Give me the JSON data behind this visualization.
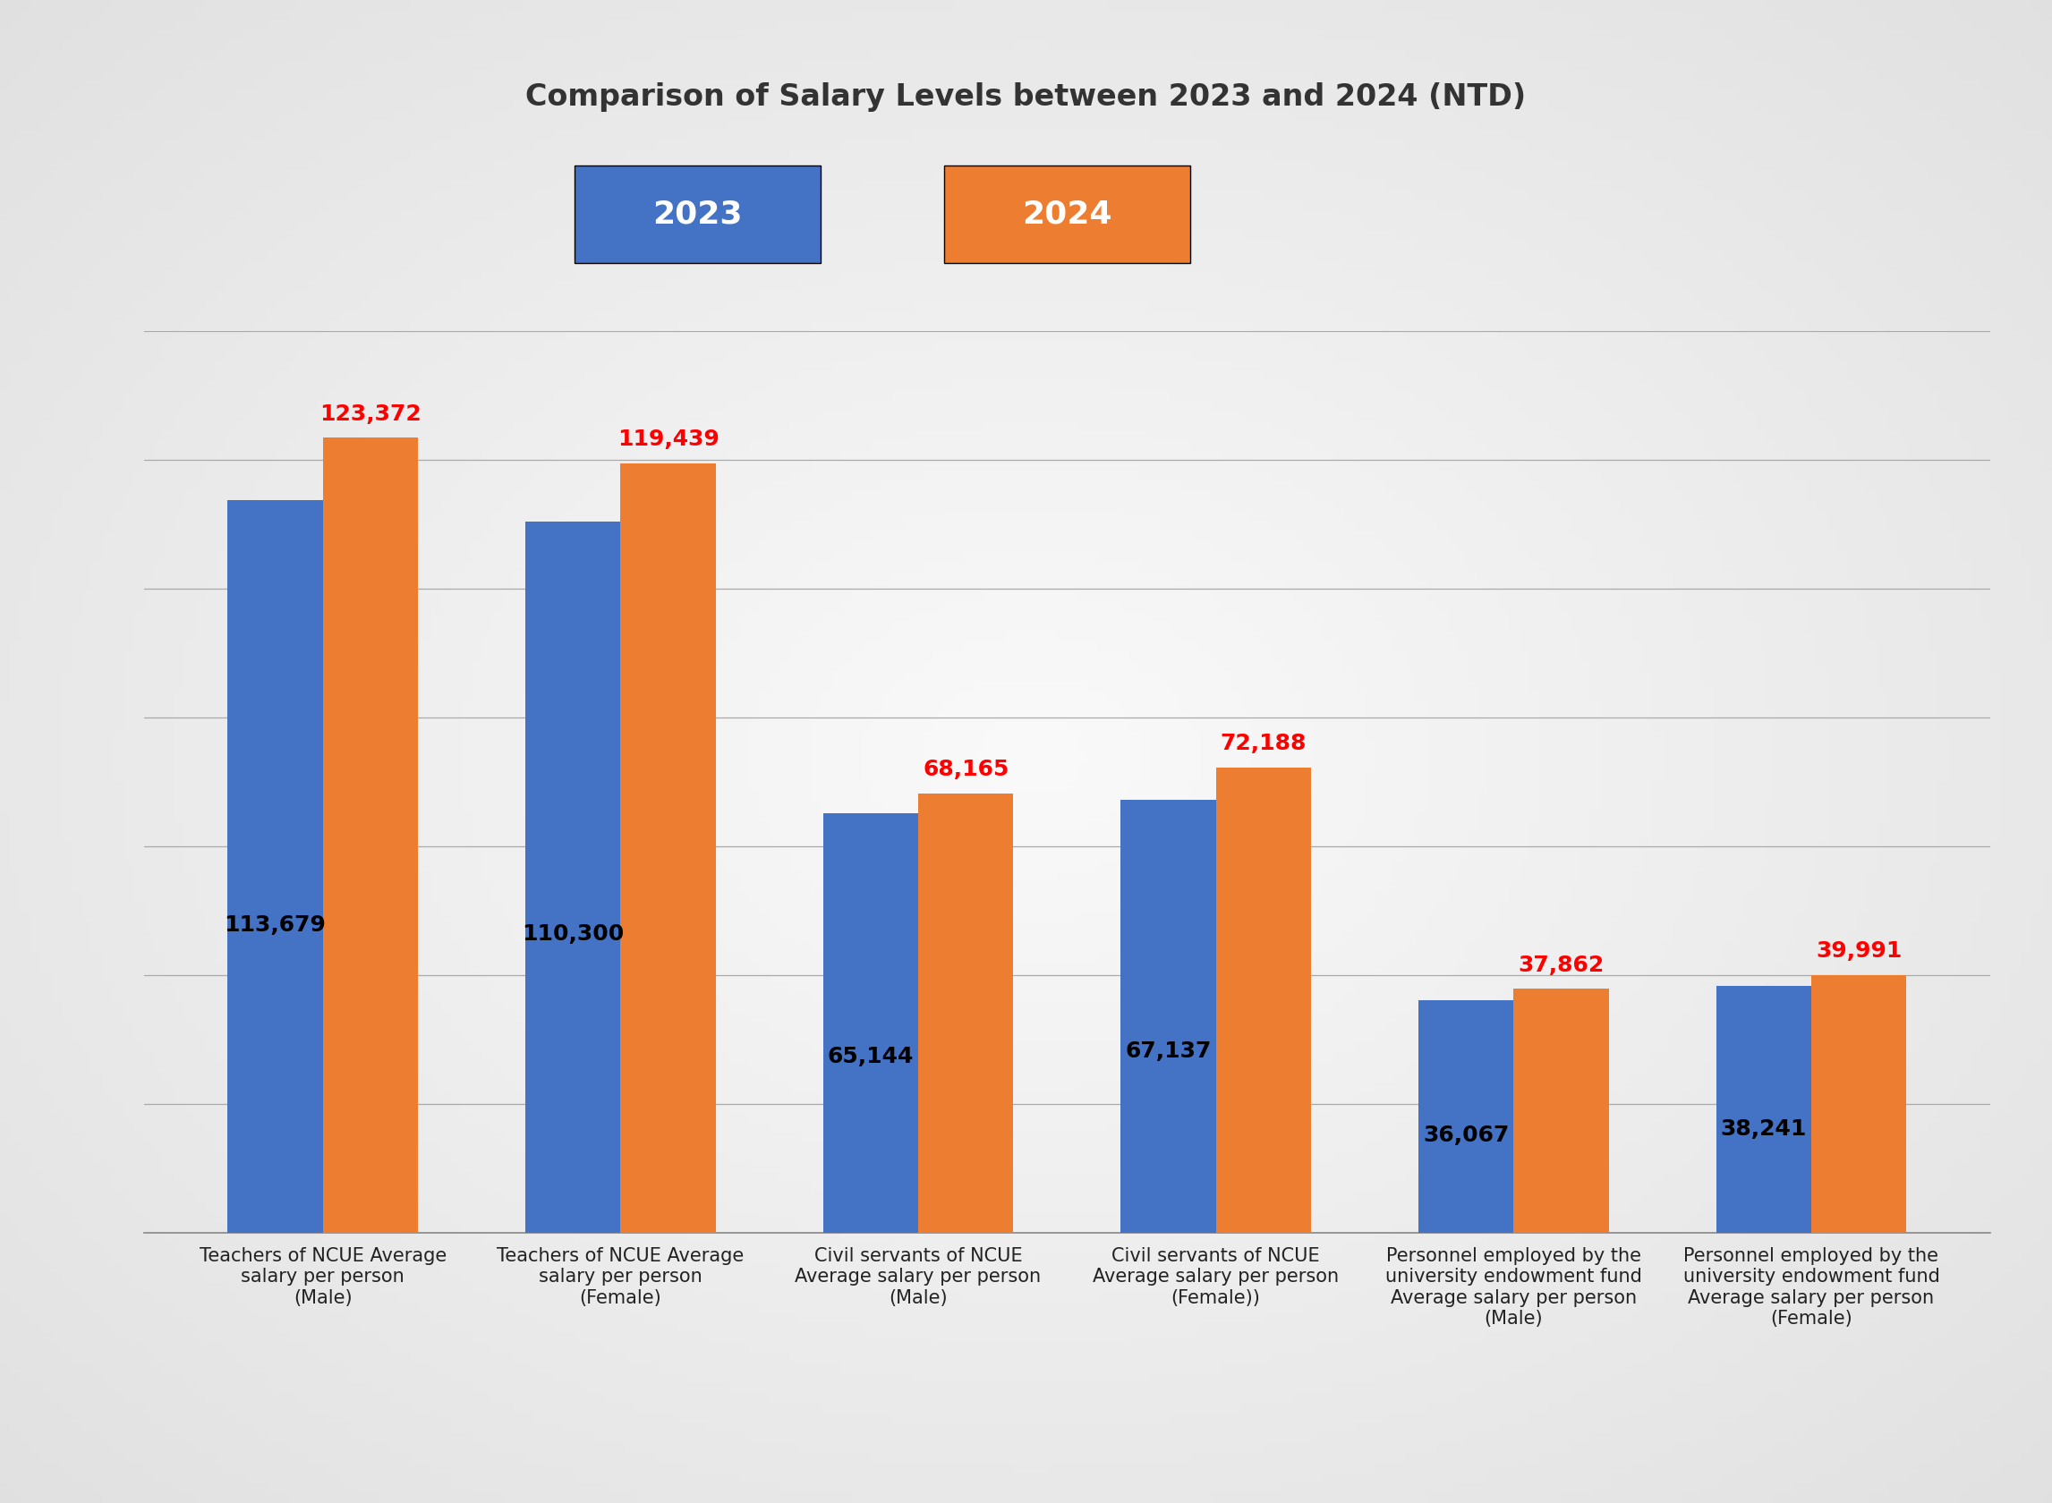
{
  "title": "Comparison of Salary Levels between 2023 and 2024 (NTD)",
  "categories": [
    "Teachers of NCUE Average\nsalary per person\n(Male)",
    "Teachers of NCUE Average\nsalary per person\n(Female)",
    "Civil servants of NCUE\nAverage salary per person\n(Male)",
    "Civil servants of NCUE\nAverage salary per person\n(Female))",
    "Personnel employed by the\nuniversity endowment fund\nAverage salary per person\n(Male)",
    "Personnel employed by the\nuniversity endowment fund\nAverage salary per person\n(Female)"
  ],
  "values_2023": [
    113679,
    110300,
    65144,
    67137,
    36067,
    38241
  ],
  "values_2024": [
    123372,
    119439,
    68165,
    72188,
    37862,
    39991
  ],
  "color_2023": "#4472c4",
  "color_2024": "#ed7d31",
  "label_color_2023": "#000000",
  "label_color_2024": "#ff0000",
  "legend_label_2023": "2023",
  "legend_label_2024": "2024",
  "background_color": "#d4d4d4",
  "plot_background_color": "#e8e8e8",
  "ylim": [
    0,
    140000
  ],
  "bar_width": 0.32,
  "title_fontsize": 24,
  "label_fontsize": 18,
  "tick_fontsize": 15,
  "legend_fontsize": 26
}
